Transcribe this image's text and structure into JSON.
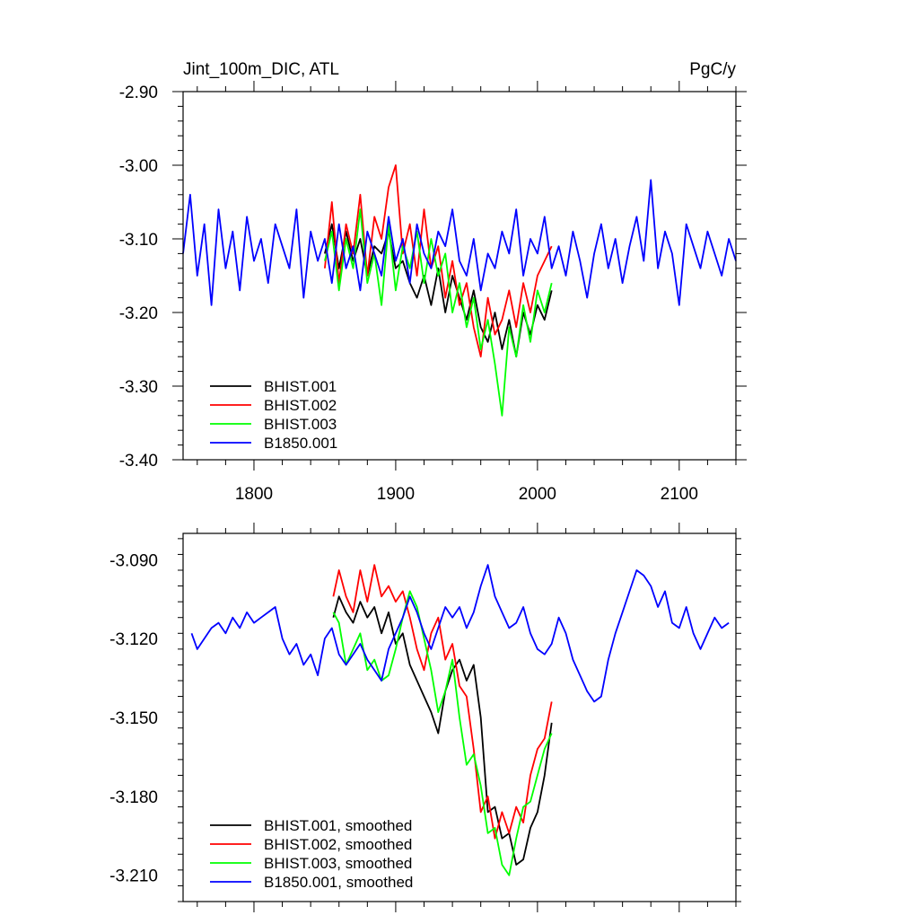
{
  "chart_data": [
    {
      "type": "line",
      "title_left": "Jint_100m_DIC, ATL",
      "title_right": "PgC/y",
      "xlim": [
        1750,
        2140
      ],
      "ylim": [
        -3.4,
        -2.9
      ],
      "xticks": [
        1800,
        1900,
        2000,
        2100
      ],
      "xtick_labels": [
        "1800",
        "1900",
        "2000",
        "2100"
      ],
      "yticks": [
        -2.9,
        -3.0,
        -3.1,
        -3.2,
        -3.3,
        -3.4
      ],
      "ytick_labels": [
        "-2.90",
        "-3.00",
        "-3.10",
        "-3.20",
        "-3.30",
        "-3.40"
      ],
      "legend_position": "bottom-left",
      "grid": false,
      "series": [
        {
          "name": "BHIST.001",
          "color": "#000000",
          "x": [
            1850,
            1855,
            1860,
            1865,
            1870,
            1875,
            1880,
            1885,
            1890,
            1895,
            1900,
            1905,
            1910,
            1915,
            1920,
            1925,
            1930,
            1935,
            1940,
            1945,
            1950,
            1955,
            1960,
            1965,
            1970,
            1975,
            1980,
            1985,
            1990,
            1995,
            2000,
            2005,
            2010
          ],
          "y": [
            -3.12,
            -3.08,
            -3.14,
            -3.09,
            -3.13,
            -3.1,
            -3.15,
            -3.11,
            -3.12,
            -3.09,
            -3.14,
            -3.13,
            -3.16,
            -3.18,
            -3.15,
            -3.19,
            -3.14,
            -3.2,
            -3.15,
            -3.18,
            -3.21,
            -3.17,
            -3.22,
            -3.24,
            -3.2,
            -3.25,
            -3.21,
            -3.26,
            -3.2,
            -3.23,
            -3.19,
            -3.21,
            -3.17
          ]
        },
        {
          "name": "BHIST.002",
          "color": "#ff0000",
          "x": [
            1850,
            1855,
            1860,
            1865,
            1870,
            1875,
            1880,
            1885,
            1890,
            1895,
            1900,
            1905,
            1910,
            1915,
            1920,
            1925,
            1930,
            1935,
            1940,
            1945,
            1950,
            1955,
            1960,
            1965,
            1970,
            1975,
            1980,
            1985,
            1990,
            1995,
            2000,
            2005,
            2010
          ],
          "y": [
            -3.14,
            -3.05,
            -3.16,
            -3.08,
            -3.12,
            -3.04,
            -3.15,
            -3.07,
            -3.1,
            -3.03,
            -3.0,
            -3.12,
            -3.08,
            -3.15,
            -3.06,
            -3.14,
            -3.11,
            -3.18,
            -3.13,
            -3.19,
            -3.16,
            -3.22,
            -3.26,
            -3.18,
            -3.23,
            -3.21,
            -3.17,
            -3.22,
            -3.16,
            -3.2,
            -3.15,
            -3.13,
            -3.11
          ]
        },
        {
          "name": "BHIST.003",
          "color": "#00ff00",
          "x": [
            1850,
            1855,
            1860,
            1865,
            1870,
            1875,
            1880,
            1885,
            1890,
            1895,
            1900,
            1905,
            1910,
            1915,
            1920,
            1925,
            1930,
            1935,
            1940,
            1945,
            1950,
            1955,
            1960,
            1965,
            1970,
            1975,
            1980,
            1985,
            1990,
            1995,
            2000,
            2005,
            2010
          ],
          "y": [
            -3.13,
            -3.09,
            -3.17,
            -3.1,
            -3.14,
            -3.06,
            -3.16,
            -3.12,
            -3.19,
            -3.08,
            -3.17,
            -3.11,
            -3.14,
            -3.09,
            -3.16,
            -3.1,
            -3.15,
            -3.12,
            -3.2,
            -3.16,
            -3.22,
            -3.18,
            -3.25,
            -3.21,
            -3.27,
            -3.34,
            -3.22,
            -3.26,
            -3.19,
            -3.24,
            -3.17,
            -3.2,
            -3.16
          ]
        },
        {
          "name": "B1850.001",
          "color": "#0000ff",
          "x": [
            1750,
            1755,
            1760,
            1765,
            1770,
            1775,
            1780,
            1785,
            1790,
            1795,
            1800,
            1805,
            1810,
            1815,
            1820,
            1825,
            1830,
            1835,
            1840,
            1845,
            1850,
            1855,
            1860,
            1865,
            1870,
            1875,
            1880,
            1885,
            1890,
            1895,
            1900,
            1905,
            1910,
            1915,
            1920,
            1925,
            1930,
            1935,
            1940,
            1945,
            1950,
            1955,
            1960,
            1965,
            1970,
            1975,
            1980,
            1985,
            1990,
            1995,
            2000,
            2005,
            2010,
            2015,
            2020,
            2025,
            2030,
            2035,
            2040,
            2045,
            2050,
            2055,
            2060,
            2065,
            2070,
            2075,
            2080,
            2085,
            2090,
            2095,
            2100,
            2105,
            2110,
            2115,
            2120,
            2125,
            2130,
            2135,
            2140
          ],
          "y": [
            -3.12,
            -3.04,
            -3.15,
            -3.08,
            -3.19,
            -3.06,
            -3.14,
            -3.09,
            -3.17,
            -3.07,
            -3.13,
            -3.1,
            -3.16,
            -3.08,
            -3.11,
            -3.14,
            -3.06,
            -3.18,
            -3.09,
            -3.13,
            -3.1,
            -3.16,
            -3.08,
            -3.14,
            -3.11,
            -3.17,
            -3.09,
            -3.12,
            -3.15,
            -3.07,
            -3.13,
            -3.1,
            -3.16,
            -3.08,
            -3.12,
            -3.14,
            -3.09,
            -3.11,
            -3.06,
            -3.13,
            -3.15,
            -3.1,
            -3.17,
            -3.12,
            -3.14,
            -3.09,
            -3.12,
            -3.06,
            -3.15,
            -3.1,
            -3.12,
            -3.07,
            -3.14,
            -3.11,
            -3.15,
            -3.09,
            -3.13,
            -3.18,
            -3.12,
            -3.08,
            -3.14,
            -3.1,
            -3.16,
            -3.11,
            -3.07,
            -3.13,
            -3.02,
            -3.14,
            -3.09,
            -3.12,
            -3.19,
            -3.08,
            -3.11,
            -3.14,
            -3.09,
            -3.12,
            -3.15,
            -3.1,
            -3.13
          ]
        }
      ]
    },
    {
      "type": "line",
      "xlim": [
        1750,
        2140
      ],
      "ylim": [
        -3.22,
        -3.08
      ],
      "xticks": [
        1800,
        1900,
        2000,
        2100
      ],
      "yticks": [
        -3.09,
        -3.12,
        -3.15,
        -3.18,
        -3.21
      ],
      "ytick_labels": [
        "-3.090",
        "-3.120",
        "-3.150",
        "-3.180",
        "-3.210"
      ],
      "legend_position": "bottom-left",
      "grid": false,
      "series": [
        {
          "name": "BHIST.001, smoothed",
          "color": "#000000",
          "x": [
            1856,
            1860,
            1865,
            1870,
            1875,
            1880,
            1885,
            1890,
            1895,
            1900,
            1905,
            1910,
            1915,
            1920,
            1925,
            1930,
            1935,
            1940,
            1945,
            1950,
            1955,
            1960,
            1965,
            1970,
            1975,
            1980,
            1985,
            1990,
            1995,
            2000,
            2005,
            2010
          ],
          "y": [
            -3.112,
            -3.104,
            -3.11,
            -3.114,
            -3.106,
            -3.112,
            -3.108,
            -3.118,
            -3.11,
            -3.122,
            -3.118,
            -3.13,
            -3.136,
            -3.142,
            -3.148,
            -3.156,
            -3.14,
            -3.132,
            -3.128,
            -3.136,
            -3.13,
            -3.15,
            -3.186,
            -3.184,
            -3.196,
            -3.194,
            -3.206,
            -3.204,
            -3.192,
            -3.186,
            -3.172,
            -3.152
          ]
        },
        {
          "name": "BHIST.002, smoothed",
          "color": "#ff0000",
          "x": [
            1856,
            1860,
            1865,
            1870,
            1875,
            1880,
            1885,
            1890,
            1895,
            1900,
            1905,
            1910,
            1915,
            1920,
            1925,
            1930,
            1935,
            1940,
            1945,
            1950,
            1955,
            1960,
            1965,
            1970,
            1975,
            1980,
            1985,
            1990,
            1995,
            2000,
            2005,
            2010
          ],
          "y": [
            -3.104,
            -3.094,
            -3.104,
            -3.11,
            -3.094,
            -3.106,
            -3.092,
            -3.104,
            -3.1,
            -3.106,
            -3.102,
            -3.112,
            -3.124,
            -3.132,
            -3.118,
            -3.112,
            -3.128,
            -3.122,
            -3.138,
            -3.142,
            -3.162,
            -3.186,
            -3.18,
            -3.196,
            -3.186,
            -3.194,
            -3.184,
            -3.19,
            -3.172,
            -3.162,
            -3.158,
            -3.144
          ]
        },
        {
          "name": "BHIST.003, smoothed",
          "color": "#00ff00",
          "x": [
            1856,
            1860,
            1865,
            1870,
            1875,
            1880,
            1885,
            1890,
            1895,
            1900,
            1905,
            1910,
            1915,
            1920,
            1925,
            1930,
            1935,
            1940,
            1945,
            1950,
            1955,
            1960,
            1965,
            1970,
            1975,
            1980,
            1985,
            1990,
            1995,
            2000,
            2005,
            2010
          ],
          "y": [
            -3.11,
            -3.114,
            -3.13,
            -3.124,
            -3.118,
            -3.132,
            -3.128,
            -3.136,
            -3.134,
            -3.124,
            -3.112,
            -3.102,
            -3.108,
            -3.12,
            -3.132,
            -3.148,
            -3.14,
            -3.128,
            -3.15,
            -3.168,
            -3.164,
            -3.176,
            -3.194,
            -3.192,
            -3.206,
            -3.21,
            -3.196,
            -3.184,
            -3.182,
            -3.172,
            -3.162,
            -3.156
          ]
        },
        {
          "name": "B1850.001, smoothed",
          "color": "#0000ff",
          "x": [
            1756,
            1760,
            1765,
            1770,
            1775,
            1780,
            1785,
            1790,
            1795,
            1800,
            1805,
            1810,
            1815,
            1820,
            1825,
            1830,
            1835,
            1840,
            1845,
            1850,
            1855,
            1860,
            1865,
            1870,
            1875,
            1880,
            1885,
            1890,
            1895,
            1900,
            1905,
            1910,
            1915,
            1920,
            1925,
            1930,
            1935,
            1940,
            1945,
            1950,
            1955,
            1960,
            1965,
            1970,
            1975,
            1980,
            1985,
            1990,
            1995,
            2000,
            2005,
            2010,
            2015,
            2020,
            2025,
            2030,
            2035,
            2040,
            2045,
            2050,
            2055,
            2060,
            2065,
            2070,
            2075,
            2080,
            2085,
            2090,
            2095,
            2100,
            2105,
            2110,
            2115,
            2120,
            2125,
            2130,
            2135
          ],
          "y": [
            -3.118,
            -3.124,
            -3.12,
            -3.116,
            -3.114,
            -3.118,
            -3.112,
            -3.116,
            -3.11,
            -3.114,
            -3.112,
            -3.11,
            -3.108,
            -3.12,
            -3.126,
            -3.122,
            -3.13,
            -3.126,
            -3.134,
            -3.12,
            -3.116,
            -3.126,
            -3.13,
            -3.126,
            -3.122,
            -3.128,
            -3.132,
            -3.136,
            -3.124,
            -3.118,
            -3.112,
            -3.104,
            -3.11,
            -3.118,
            -3.124,
            -3.116,
            -3.108,
            -3.112,
            -3.108,
            -3.116,
            -3.11,
            -3.1,
            -3.092,
            -3.104,
            -3.11,
            -3.116,
            -3.114,
            -3.108,
            -3.118,
            -3.124,
            -3.126,
            -3.122,
            -3.112,
            -3.118,
            -3.128,
            -3.134,
            -3.14,
            -3.144,
            -3.142,
            -3.128,
            -3.118,
            -3.11,
            -3.102,
            -3.094,
            -3.096,
            -3.1,
            -3.108,
            -3.102,
            -3.114,
            -3.116,
            -3.108,
            -3.118,
            -3.124,
            -3.118,
            -3.112,
            -3.116,
            -3.114
          ]
        }
      ]
    }
  ]
}
